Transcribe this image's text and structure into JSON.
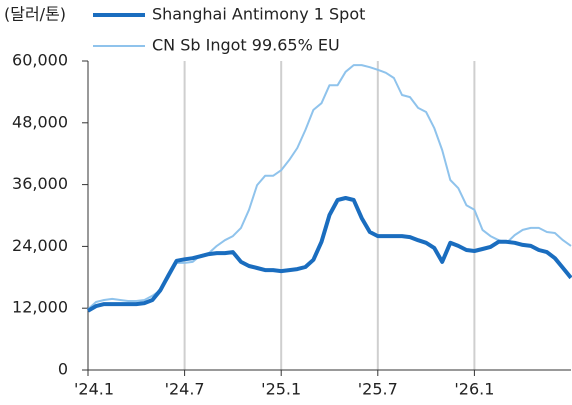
{
  "chart_data": {
    "type": "line",
    "y_label": "(달러/톤)",
    "categories": [
      "'24.1",
      null,
      null,
      null,
      null,
      null,
      null,
      null,
      null,
      null,
      null,
      null,
      "'24.7",
      null,
      null,
      null,
      null,
      null,
      null,
      null,
      null,
      null,
      null,
      null,
      "'25.1",
      null,
      null,
      null,
      null,
      null,
      null,
      null,
      null,
      null,
      null,
      null,
      "'25.7",
      null,
      null,
      null,
      null,
      null,
      null,
      null,
      null,
      null,
      null,
      null,
      "'26.1",
      null,
      null,
      null,
      null,
      null,
      null,
      null,
      null,
      null,
      null,
      null,
      null
    ],
    "series": [
      {
        "name": "Shanghai Antimony 1 Spot",
        "color": "#1a6dbf",
        "width": 4,
        "values": [
          11500,
          12400,
          12800,
          12800,
          12800,
          12800,
          12800,
          13000,
          13600,
          15500,
          18400,
          21200,
          21500,
          21700,
          22100,
          22500,
          22700,
          22700,
          22900,
          21000,
          20200,
          19800,
          19400,
          19400,
          19200,
          19400,
          19600,
          20000,
          21400,
          24900,
          30100,
          33000,
          33400,
          33000,
          29500,
          26800,
          26000,
          26000,
          26000,
          26000,
          25800,
          25200,
          24700,
          23700,
          21000,
          24700,
          24100,
          23300,
          23100,
          23500,
          23900,
          24900,
          24900,
          24700,
          24300,
          24100,
          23300,
          22900,
          21700,
          19800,
          17900
        ]
      },
      {
        "name": "CN Sb Ingot 99.65% EU",
        "color": "#8fc3ec",
        "width": 2,
        "values": [
          11800,
          13200,
          13600,
          13800,
          13600,
          13400,
          13400,
          13600,
          14400,
          15500,
          17900,
          20800,
          20800,
          21000,
          22300,
          22700,
          24100,
          25200,
          26000,
          27600,
          31100,
          35900,
          37700,
          37700,
          38800,
          40800,
          43100,
          46600,
          50500,
          51800,
          55300,
          55300,
          57900,
          59200,
          59200,
          58800,
          58300,
          57700,
          56700,
          53400,
          53000,
          50900,
          50100,
          47000,
          42700,
          36900,
          35300,
          32000,
          31100,
          27200,
          26000,
          25200,
          24700,
          26200,
          27200,
          27600,
          27600,
          26800,
          26600,
          25200,
          24100
        ]
      }
    ],
    "ylim": [
      0,
      60000
    ],
    "yticks": [
      0,
      {
        "value": 12000,
        "label": "12,000"
      },
      {
        "value": 24000,
        "label": "24,000"
      },
      {
        "value": 36000,
        "label": "36,000"
      },
      {
        "value": 48000,
        "label": "48,000"
      },
      {
        "value": 60000,
        "label": "60,000"
      }
    ],
    "grid": "x"
  }
}
